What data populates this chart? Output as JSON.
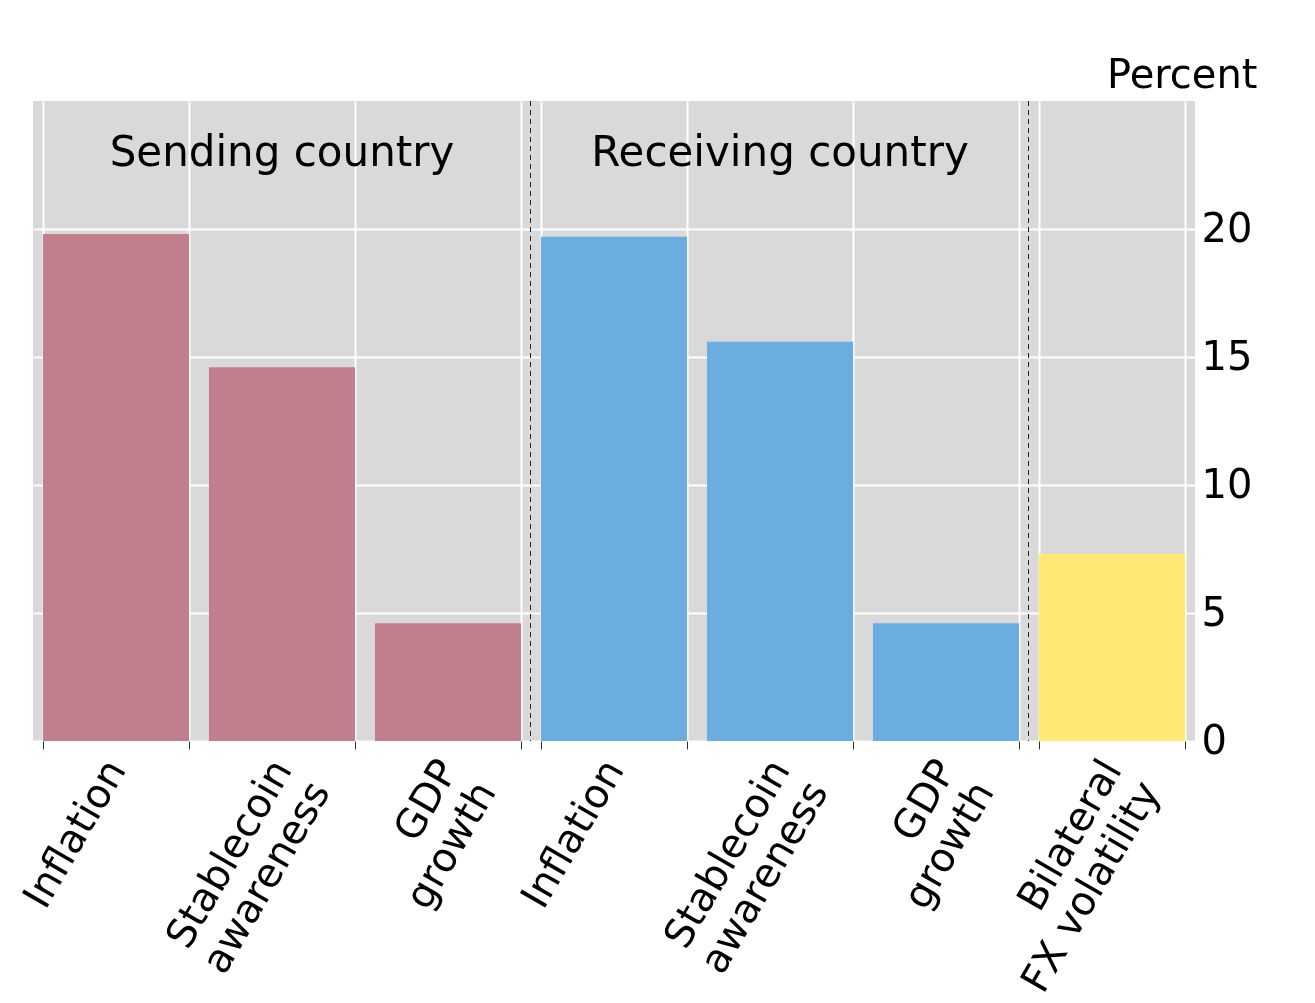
{
  "chart_data": [
    {
      "type": "bar",
      "title": "Sending country",
      "categories": [
        "Inflation",
        "Stablecoin\nawareness",
        "GDP\ngrowth"
      ],
      "values": [
        19.8,
        14.6,
        4.6
      ],
      "color": "#c17f8e",
      "ylim": [
        0,
        25
      ],
      "yticks": [
        0,
        5,
        10,
        15,
        20
      ],
      "grid": true,
      "tick_labels": "x"
    },
    {
      "type": "bar",
      "title": "Receiving country",
      "categories": [
        "Inflation",
        "Stablecoin\nawareness",
        "GDP\ngrowth"
      ],
      "values": [
        19.7,
        15.6,
        4.6
      ],
      "color": "#6aade0",
      "ylim": [
        0,
        25
      ],
      "yticks": [
        0,
        5,
        10,
        15,
        20
      ],
      "grid": true,
      "tick_labels": "x"
    },
    {
      "type": "bar",
      "ylabel": "Percent",
      "categories": [
        "Bilateral\nFX volatility"
      ],
      "values": [
        7.3
      ],
      "color": "#ffe873",
      "ylim": [
        0,
        25
      ],
      "yticks": [
        0,
        5,
        10,
        15,
        20
      ],
      "grid": true
    }
  ]
}
